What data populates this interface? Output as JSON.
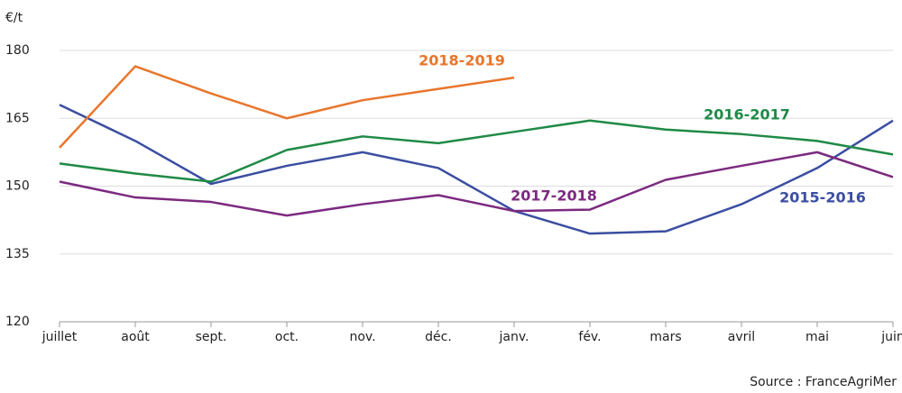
{
  "chart_data": {
    "type": "line",
    "y_label": "€/t",
    "source": "Source : FranceAgriMer",
    "categories": [
      "juillet",
      "août",
      "sept.",
      "oct.",
      "nov.",
      "déc.",
      "janv.",
      "fév.",
      "mars",
      "avril",
      "mai",
      "juin"
    ],
    "series": [
      {
        "name": "2015-2016",
        "color": "#3b4ea1",
        "values": [
          168,
          160,
          150.5,
          154.5,
          157.5,
          154,
          144.5,
          139.5,
          140,
          146,
          154,
          164.5
        ]
      },
      {
        "name": "2016-2017",
        "color": "#1f8a46",
        "values": [
          155,
          152.8,
          151,
          158,
          161,
          159.5,
          162,
          164.5,
          162.5,
          161.5,
          160,
          157
        ]
      },
      {
        "name": "2017-2018",
        "color": "#7b2a7f",
        "values": [
          151,
          147.5,
          146.5,
          143.5,
          146,
          148,
          144.5,
          144.8,
          151.4,
          154.5,
          157.5,
          152
        ]
      },
      {
        "name": "2018-2019",
        "color": "#e8762c",
        "values": [
          158.5,
          176.5,
          170.5,
          165,
          169,
          171.5,
          174,
          null,
          null,
          null,
          null,
          null
        ]
      }
    ],
    "ylim": [
      120,
      180
    ],
    "yticks": [
      120,
      135,
      150,
      165,
      180
    ],
    "grid": true
  }
}
